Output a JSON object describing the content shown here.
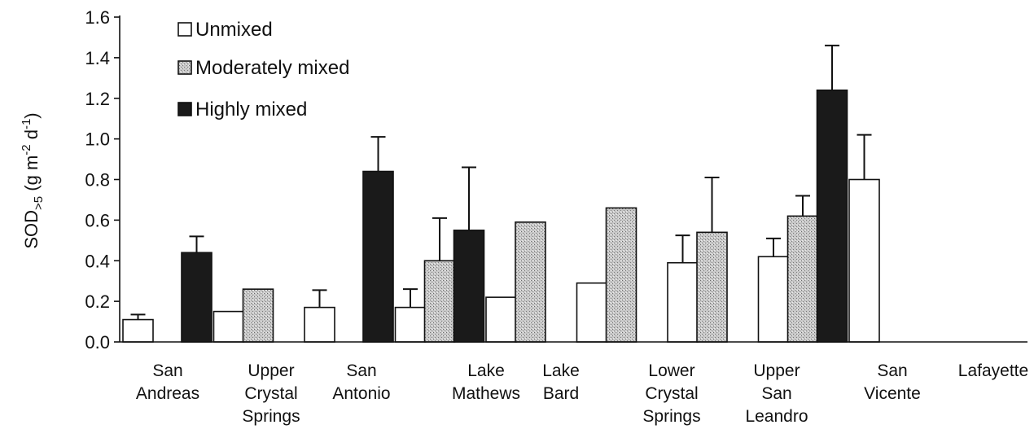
{
  "chart_data": {
    "type": "bar",
    "ylabel_main": "SOD",
    "ylabel_sub": ">5",
    "ylabel_units": "(g m",
    "ylabel_exp1": "-2",
    "ylabel_mid": " d",
    "ylabel_exp2": "-1",
    "ylabel_close": ")",
    "ylim": [
      0,
      1.6
    ],
    "yticks": [
      "0.0",
      "0.2",
      "0.4",
      "0.6",
      "0.8",
      "1.0",
      "1.2",
      "1.4",
      "1.6"
    ],
    "categories": [
      [
        "San",
        "Andreas"
      ],
      [
        "Upper",
        "Crystal",
        "Springs"
      ],
      [
        "San",
        "Antonio"
      ],
      [
        "Lake",
        "Mathews"
      ],
      [
        "Lake",
        "Bard"
      ],
      [
        "Lower",
        "Crystal",
        "Springs"
      ],
      [
        "Upper",
        "San",
        "Leandro"
      ],
      [
        "San",
        "Vicente"
      ],
      [
        "Lafayette"
      ]
    ],
    "legend_position": "top-left",
    "series": [
      {
        "name": "Unmixed",
        "pattern": "white",
        "values": [
          0.11,
          0.15,
          0.17,
          0.17,
          0.22,
          0.29,
          0.39,
          0.42,
          0.8
        ],
        "errors": [
          0.025,
          null,
          0.085,
          0.09,
          null,
          null,
          0.135,
          0.09,
          0.22
        ]
      },
      {
        "name": "Moderately mixed",
        "pattern": "stippled-gray",
        "values": [
          null,
          0.26,
          null,
          0.4,
          0.59,
          0.66,
          0.54,
          0.62,
          null
        ],
        "errors": [
          null,
          null,
          null,
          0.21,
          null,
          null,
          0.27,
          0.1,
          null
        ]
      },
      {
        "name": "Highly mixed",
        "pattern": "black",
        "values": [
          0.44,
          null,
          0.84,
          0.55,
          null,
          null,
          null,
          1.24,
          null
        ],
        "errors": [
          0.08,
          null,
          0.17,
          0.31,
          null,
          null,
          null,
          0.22,
          null
        ]
      }
    ]
  }
}
